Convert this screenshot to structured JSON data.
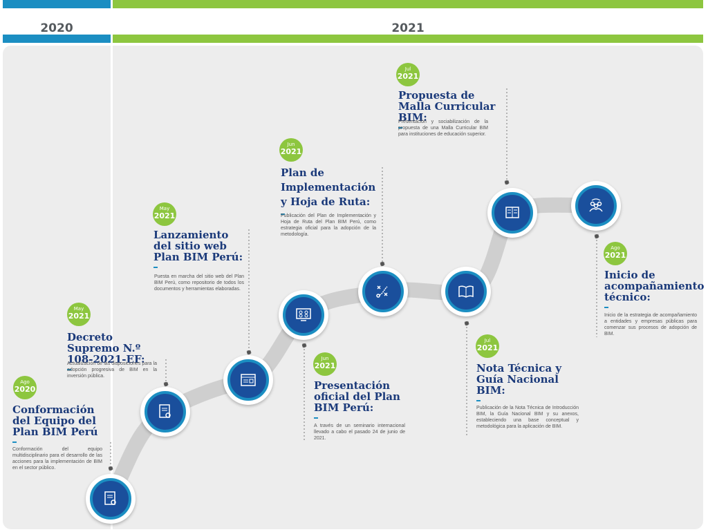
{
  "years": [
    {
      "label": "2020"
    },
    {
      "label": "2021"
    }
  ],
  "milestones": [
    {
      "month": "Ago",
      "year": "2020",
      "title": "Conformación del Equipo del Plan BIM Perú",
      "desc": "Conformación del equipo multidisciplinario para el desarrollo de las acciones para la implementación de BIM en el sector público.",
      "icon": "certificate-icon"
    },
    {
      "month": "May",
      "year": "2021",
      "title": "Decreto Supremo N.º 108-2021-EF:",
      "desc": "Actualización de las disposiciones para la adopción progresiva de BIM en la inversión pública.",
      "icon": "certificate-icon"
    },
    {
      "month": "May",
      "year": "2021",
      "title": "Lanzamiento del sitio web Plan BIM Perú:",
      "desc": "Puesta en marcha del sitio web del Plan BIM Perú, como repositorio de todos los documentos y herramientas elaboradas.",
      "icon": "website-icon"
    },
    {
      "month": "Jun",
      "year": "2021",
      "title": "Presentación oficial del Plan BIM Perú:",
      "desc": "A través de un seminario internacional llevado a cabo el pasado 24 de junio de 2021.",
      "icon": "video-conference-icon"
    },
    {
      "month": "Jun",
      "year": "2021",
      "title": "Plan de Implementación y Hoja de Ruta:",
      "desc": "Publicación del Plan de Implementación y Hoja de Ruta del Plan BIM Perú, como estrategia oficial para la adopción de la metodología.",
      "icon": "strategy-icon"
    },
    {
      "month": "Jul",
      "year": "2021",
      "title": "Nota Técnica y Guía Nacional BIM:",
      "desc": "Publicación de la Nota Técnica de Introducción BIM, la Guía Nacional BIM y su anexos, estableciendo una base conceptual y metodológica para la aplicación de BIM.",
      "icon": "open-book-icon"
    },
    {
      "month": "Jul",
      "year": "2021",
      "title": "Propuesta de Malla Curricular BIM:",
      "desc": "Presentación y sociabilización de la propuesta de una Malla Curricular BIM para instituciones de educación superior.",
      "icon": "book-icon"
    },
    {
      "month": "Ago",
      "year": "2021",
      "title": "Inicio de acompañamiento técnico:",
      "desc": "Inicio de la estrategia de acompañamiento a entidades y empresas públicas para comenzar sus procesos de adopción de BIM.",
      "icon": "team-support-icon"
    }
  ],
  "colors": {
    "blue_dark": "#1a4f9c",
    "blue": "#1b8ec2",
    "green": "#8dc63f",
    "title": "#1b3a7a",
    "road": "#cfcfcf"
  }
}
